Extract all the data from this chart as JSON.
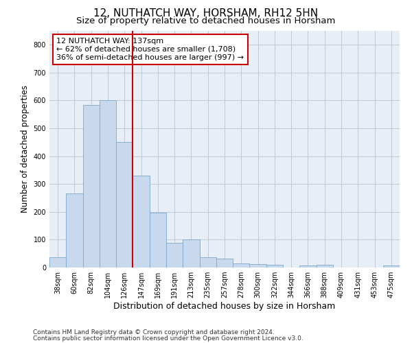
{
  "title": "12, NUTHATCH WAY, HORSHAM, RH12 5HN",
  "subtitle": "Size of property relative to detached houses in Horsham",
  "xlabel": "Distribution of detached houses by size in Horsham",
  "ylabel": "Number of detached properties",
  "bar_labels": [
    "38sqm",
    "60sqm",
    "82sqm",
    "104sqm",
    "126sqm",
    "147sqm",
    "169sqm",
    "191sqm",
    "213sqm",
    "235sqm",
    "257sqm",
    "278sqm",
    "300sqm",
    "322sqm",
    "344sqm",
    "366sqm",
    "388sqm",
    "409sqm",
    "431sqm",
    "453sqm",
    "475sqm"
  ],
  "bar_values": [
    37,
    267,
    585,
    602,
    452,
    330,
    197,
    88,
    101,
    37,
    33,
    15,
    13,
    10,
    0,
    8,
    10,
    0,
    0,
    0,
    7
  ],
  "bar_color": "#c9d9ed",
  "bar_edgecolor": "#7da8cc",
  "vline_x": 4.5,
  "vline_color": "#cc0000",
  "annotation_text": "12 NUTHATCH WAY: 137sqm\n← 62% of detached houses are smaller (1,708)\n36% of semi-detached houses are larger (997) →",
  "annotation_box_color": "#ffffff",
  "annotation_box_edgecolor": "#cc0000",
  "ylim": [
    0,
    850
  ],
  "yticks": [
    0,
    100,
    200,
    300,
    400,
    500,
    600,
    700,
    800
  ],
  "background_color": "#ffffff",
  "grid_color": "#c0c8d8",
  "footnote1": "Contains HM Land Registry data © Crown copyright and database right 2024.",
  "footnote2": "Contains public sector information licensed under the Open Government Licence v3.0.",
  "title_fontsize": 11,
  "subtitle_fontsize": 9.5,
  "xlabel_fontsize": 9,
  "ylabel_fontsize": 8.5,
  "tick_fontsize": 7,
  "annotation_fontsize": 8,
  "footnote_fontsize": 6.5
}
